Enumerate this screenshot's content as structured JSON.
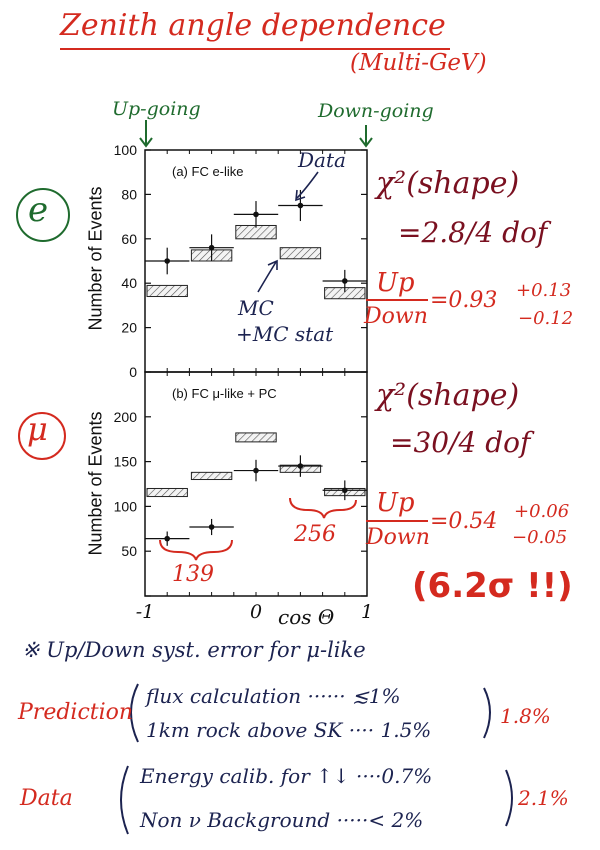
{
  "title": "Zenith angle dependence",
  "subtitle": "(Multi-GeV)",
  "upgoing_label": "Up-going",
  "downgoing_label": "Down-going",
  "e_symbol": "e",
  "mu_symbol": "μ",
  "chart_data": [
    {
      "type": "scatter",
      "panel_label": "(a) FC e-like",
      "ylabel": "Number of Events",
      "xlim": [
        -1,
        1
      ],
      "ylim": [
        0,
        100
      ],
      "yticks": [
        "0",
        "20",
        "40",
        "60",
        "80",
        "100"
      ],
      "series": [
        {
          "name": "Data",
          "x": [
            -0.8,
            -0.4,
            0.0,
            0.4,
            0.8
          ],
          "y": [
            50,
            56,
            71,
            75,
            41
          ],
          "yerr": [
            6,
            6,
            6,
            7,
            5
          ]
        },
        {
          "name": "MC +MC stat",
          "x": [
            -0.8,
            -0.4,
            0.0,
            0.4,
            0.8
          ],
          "y_low": [
            34,
            50,
            60,
            51,
            33
          ],
          "y_high": [
            39,
            55,
            66,
            56,
            38
          ]
        }
      ],
      "annotations": [
        "Data",
        "MC",
        "+MC stat"
      ]
    },
    {
      "type": "scatter",
      "panel_label": "(b) FC μ-like + PC",
      "ylabel": "Number of Events",
      "xlabel": "cos Θ",
      "xlim": [
        -1,
        1
      ],
      "ylim": [
        0,
        250
      ],
      "yticks": [
        "0",
        "50",
        "100",
        "150",
        "200"
      ],
      "xticks": [
        "-1",
        "0",
        "1"
      ],
      "series": [
        {
          "name": "Data",
          "x": [
            -0.8,
            -0.4,
            0.0,
            0.4,
            0.8
          ],
          "y": [
            64,
            77,
            140,
            145,
            118
          ],
          "yerr": [
            8,
            9,
            12,
            12,
            11
          ]
        },
        {
          "name": "MC",
          "x": [
            -0.8,
            -0.4,
            0.0,
            0.4,
            0.8
          ],
          "y_low": [
            111,
            130,
            172,
            138,
            112
          ],
          "y_high": [
            120,
            138,
            182,
            146,
            120
          ]
        }
      ],
      "annotations": [
        "139",
        "256"
      ]
    }
  ],
  "e_chi2": {
    "line1": "χ²(shape)",
    "line2": "=2.8/4 dof"
  },
  "e_ratio": {
    "num": "Up",
    "den": "Down",
    "value": "=0.93",
    "plus": "+0.13",
    "minus": "−0.12"
  },
  "mu_chi2": {
    "line1": "χ²(shape)",
    "line2": "=30/4 dof"
  },
  "mu_ratio": {
    "num": "Up",
    "den": "Down",
    "value": "=0.54",
    "plus": "+0.06",
    "minus": "−0.05"
  },
  "significance": "(6.2σ !!)",
  "note": "※ Up/Down syst. error for μ-like",
  "prediction": {
    "label": "Prediction",
    "item1": "flux calculation ······ ≲1%",
    "item2": "1km rock above SK ···· 1.5%",
    "total": "1.8%"
  },
  "data_syst": {
    "label": "Data",
    "item1": "Energy calib. for ↑↓ ····0.7%",
    "item2": "Non ν Background ·····< 2%",
    "total": "2.1%"
  },
  "colors": {
    "red": "#d42a1f",
    "maroon": "#7a1020",
    "green": "#1f6b2e",
    "navy": "#1c2350"
  }
}
